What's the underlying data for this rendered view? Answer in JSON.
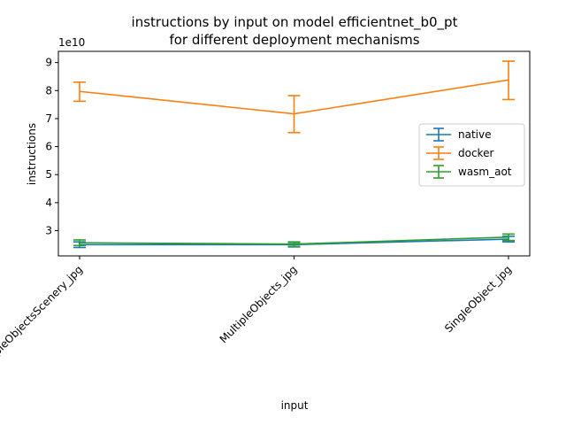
{
  "chart_data": {
    "type": "line",
    "title_line1": "instructions by input on model efficientnet_b0_pt",
    "title_line2": "for different deployment mechanisms",
    "xlabel": "input",
    "ylabel": "instructions",
    "y_offset_label": "1e10",
    "categories": [
      "MultipleObjectsScenery_jpg",
      "MultipleObjects_jpg",
      "SingleObject_jpg"
    ],
    "ylim": [
      2.1,
      9.4
    ],
    "yticks": [
      3,
      4,
      5,
      6,
      7,
      8,
      9
    ],
    "ytick_labels": [
      "3",
      "4",
      "5",
      "6",
      "7",
      "8",
      "9"
    ],
    "legend_position": "center-right",
    "series": [
      {
        "name": "native",
        "color": "#1f77b4",
        "values": [
          2.5,
          2.5,
          2.7
        ],
        "err_low": [
          2.4,
          2.42,
          2.6
        ],
        "err_high": [
          2.6,
          2.58,
          2.8
        ]
      },
      {
        "name": "docker",
        "color": "#ff7f0e",
        "values": [
          7.97,
          7.17,
          8.38
        ],
        "err_low": [
          7.62,
          6.5,
          7.68
        ],
        "err_high": [
          8.3,
          7.82,
          9.05
        ]
      },
      {
        "name": "wasm_aot",
        "color": "#2ca02c",
        "values": [
          2.57,
          2.52,
          2.77
        ],
        "err_low": [
          2.47,
          2.44,
          2.65
        ],
        "err_high": [
          2.67,
          2.6,
          2.88
        ]
      }
    ]
  }
}
